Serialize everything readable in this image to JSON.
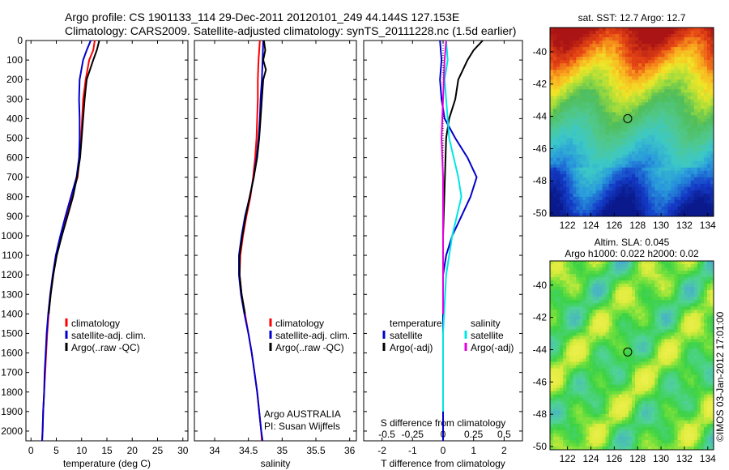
{
  "title_line1": "Argo profile: CS 1901133_114 29-Dec-2011 20120101_249 44.144S 127.153E",
  "title_line2": "Climatology: CARS2009. Satellite-adjusted climatology: synTS_20111228.nc (1.5d earlier)",
  "depth_ticks": [
    "0",
    "100",
    "200",
    "300",
    "400",
    "500",
    "600",
    "700",
    "800",
    "900",
    "1000",
    "1100",
    "1200",
    "1300",
    "1400",
    "1500",
    "1600",
    "1700",
    "1800",
    "1900",
    "2000"
  ],
  "colors": {
    "climatology": "#ff0000",
    "satellite": "#0000cc",
    "argo": "#000000",
    "sat_salinity": "#00e5e5",
    "argo_salinity": "#e000e0"
  },
  "chart_data": [
    {
      "type": "line",
      "id": "temperature",
      "xlabel": "temperature (deg C)",
      "xlim": [
        -1,
        31
      ],
      "xticks": [
        0,
        5,
        10,
        15,
        20,
        25,
        30
      ],
      "ylim": [
        0,
        2050
      ],
      "legend": [
        "climatology",
        "satellite-adj. clim.",
        "Argo(..raw -QC)"
      ],
      "series": [
        {
          "name": "climatology",
          "color": "#ff0000",
          "points": [
            [
              12.6,
              0
            ],
            [
              12.3,
              50
            ],
            [
              11.5,
              100
            ],
            [
              10.8,
              200
            ],
            [
              10.3,
              300
            ],
            [
              10.1,
              400
            ],
            [
              9.9,
              500
            ],
            [
              9.6,
              600
            ],
            [
              9.2,
              700
            ],
            [
              8.0,
              800
            ],
            [
              6.9,
              900
            ],
            [
              5.9,
              1000
            ],
            [
              5.0,
              1100
            ],
            [
              4.4,
              1200
            ],
            [
              3.9,
              1300
            ],
            [
              3.5,
              1400
            ],
            [
              3.2,
              1500
            ],
            [
              3.0,
              1600
            ],
            [
              2.8,
              1700
            ],
            [
              2.6,
              1800
            ],
            [
              2.4,
              1900
            ],
            [
              2.3,
              2000
            ],
            [
              2.2,
              2050
            ]
          ]
        },
        {
          "name": "satellite-adj. clim.",
          "color": "#0000cc",
          "points": [
            [
              11.8,
              0
            ],
            [
              11.0,
              50
            ],
            [
              10.3,
              100
            ],
            [
              9.6,
              200
            ],
            [
              9.5,
              300
            ],
            [
              9.6,
              400
            ],
            [
              9.6,
              500
            ],
            [
              9.5,
              600
            ],
            [
              9.0,
              700
            ],
            [
              7.9,
              800
            ],
            [
              6.8,
              900
            ],
            [
              5.8,
              1000
            ],
            [
              4.9,
              1100
            ],
            [
              4.3,
              1200
            ],
            [
              3.8,
              1300
            ],
            [
              3.4,
              1400
            ],
            [
              3.1,
              1500
            ],
            [
              2.9,
              1600
            ],
            [
              2.7,
              1700
            ],
            [
              2.6,
              1800
            ],
            [
              2.4,
              1900
            ],
            [
              2.3,
              2000
            ],
            [
              2.2,
              2050
            ]
          ]
        },
        {
          "name": "Argo(..raw -QC)",
          "color": "#000000",
          "points": [
            [
              13.5,
              0
            ],
            [
              13.0,
              50
            ],
            [
              12.3,
              100
            ],
            [
              11.0,
              200
            ],
            [
              10.6,
              300
            ],
            [
              10.3,
              400
            ],
            [
              10.0,
              500
            ],
            [
              9.7,
              600
            ],
            [
              9.1,
              700
            ],
            [
              8.3,
              800
            ],
            [
              7.2,
              900
            ],
            [
              6.1,
              1000
            ],
            [
              5.1,
              1100
            ],
            [
              4.4,
              1200
            ],
            [
              3.9,
              1300
            ],
            [
              3.5,
              1400
            ]
          ]
        }
      ]
    },
    {
      "type": "line",
      "id": "salinity",
      "xlabel": "salinity",
      "xlim": [
        33.7,
        36.1
      ],
      "xticks": [
        34,
        34.5,
        35,
        35.5,
        36
      ],
      "ylim": [
        0,
        2050
      ],
      "legend": [
        "climatology",
        "satellite-adj. clim.",
        "Argo(..raw -QC)"
      ],
      "annotation": [
        "Argo AUSTRALIA",
        "PI: Susan Wijffels"
      ],
      "series": [
        {
          "name": "climatology",
          "color": "#ff0000",
          "points": [
            [
              34.67,
              0
            ],
            [
              34.65,
              100
            ],
            [
              34.64,
              200
            ],
            [
              34.64,
              300
            ],
            [
              34.63,
              400
            ],
            [
              34.62,
              500
            ],
            [
              34.6,
              600
            ],
            [
              34.57,
              700
            ],
            [
              34.53,
              800
            ],
            [
              34.47,
              900
            ],
            [
              34.42,
              1000
            ],
            [
              34.38,
              1100
            ],
            [
              34.37,
              1200
            ],
            [
              34.4,
              1300
            ],
            [
              34.45,
              1400
            ],
            [
              34.5,
              1500
            ],
            [
              34.55,
              1600
            ],
            [
              34.59,
              1700
            ],
            [
              34.63,
              1800
            ],
            [
              34.66,
              1900
            ],
            [
              34.69,
              2000
            ],
            [
              34.7,
              2050
            ]
          ]
        },
        {
          "name": "satellite-adj. clim.",
          "color": "#0000cc",
          "points": [
            [
              34.72,
              0
            ],
            [
              34.71,
              100
            ],
            [
              34.7,
              200
            ],
            [
              34.68,
              300
            ],
            [
              34.67,
              400
            ],
            [
              34.65,
              500
            ],
            [
              34.62,
              600
            ],
            [
              34.58,
              700
            ],
            [
              34.52,
              800
            ],
            [
              34.45,
              900
            ],
            [
              34.4,
              1000
            ],
            [
              34.36,
              1100
            ],
            [
              34.36,
              1200
            ],
            [
              34.39,
              1300
            ],
            [
              34.44,
              1400
            ],
            [
              34.5,
              1500
            ],
            [
              34.55,
              1600
            ],
            [
              34.59,
              1700
            ],
            [
              34.63,
              1800
            ],
            [
              34.66,
              1900
            ],
            [
              34.69,
              2000
            ],
            [
              34.71,
              2050
            ]
          ]
        },
        {
          "name": "Argo(..raw -QC)",
          "color": "#000000",
          "points": [
            [
              34.73,
              0
            ],
            [
              34.75,
              50
            ],
            [
              34.72,
              100
            ],
            [
              34.76,
              150
            ],
            [
              34.72,
              200
            ],
            [
              34.7,
              300
            ],
            [
              34.68,
              400
            ],
            [
              34.66,
              500
            ],
            [
              34.63,
              600
            ],
            [
              34.58,
              700
            ],
            [
              34.52,
              800
            ],
            [
              34.46,
              900
            ],
            [
              34.41,
              1000
            ],
            [
              34.37,
              1100
            ],
            [
              34.37,
              1200
            ],
            [
              34.4,
              1300
            ],
            [
              34.45,
              1400
            ]
          ]
        }
      ]
    },
    {
      "type": "line",
      "id": "difference",
      "xlabel": "T difference from climatology",
      "xlabel_top": "S difference from climatology",
      "xlim": [
        -2.6,
        2.6
      ],
      "xticks": [
        -2,
        -1,
        0,
        1,
        2
      ],
      "top_ticks": [
        "-0.5",
        "-0.25",
        "0",
        "0.25",
        "0.5"
      ],
      "ylim": [
        0,
        2050
      ],
      "legend_left": [
        "temperature",
        "satellite",
        "Argo(-adj)"
      ],
      "legend_right": [
        "salinity",
        "satellite",
        "Argo(-adj)"
      ],
      "series": [
        {
          "name": "T satellite",
          "color": "#0000cc",
          "points": [
            [
              -0.1,
              0
            ],
            [
              -0.05,
              100
            ],
            [
              -0.1,
              200
            ],
            [
              -0.05,
              300
            ],
            [
              0.05,
              400
            ],
            [
              0.4,
              500
            ],
            [
              0.8,
              600
            ],
            [
              1.1,
              700
            ],
            [
              0.9,
              800
            ],
            [
              0.6,
              900
            ],
            [
              0.3,
              1000
            ],
            [
              0.1,
              1100
            ],
            [
              0,
              1200
            ],
            [
              0,
              1500
            ],
            [
              0,
              2050
            ]
          ]
        },
        {
          "name": "T Argo(-adj)",
          "color": "#000000",
          "points": [
            [
              1.3,
              0
            ],
            [
              1.0,
              50
            ],
            [
              0.8,
              100
            ],
            [
              0.5,
              200
            ],
            [
              0.4,
              300
            ],
            [
              0.2,
              400
            ],
            [
              0.1,
              500
            ],
            [
              0,
              1000
            ],
            [
              0,
              1400
            ]
          ]
        },
        {
          "name": "S satellite",
          "color": "#00e5e5",
          "points": [
            [
              0.1,
              0
            ],
            [
              0.15,
              100
            ],
            [
              0.05,
              200
            ],
            [
              0.1,
              300
            ],
            [
              0.2,
              500
            ],
            [
              0.5,
              700
            ],
            [
              0.6,
              800
            ],
            [
              0.3,
              1000
            ],
            [
              0.1,
              1200
            ],
            [
              0,
              1500
            ],
            [
              0,
              1900
            ]
          ]
        },
        {
          "name": "S Argo(-adj)",
          "color": "#e000e0",
          "points": [
            [
              0.1,
              0
            ],
            [
              0.05,
              100
            ],
            [
              0,
              300
            ],
            [
              -0.05,
              500
            ],
            [
              0,
              700
            ],
            [
              0,
              1000
            ],
            [
              0,
              1400
            ]
          ]
        }
      ]
    },
    {
      "type": "heatmap",
      "id": "sst-map",
      "title": "sat. SST: 12.7 Argo: 12.7",
      "xticks": [
        "122",
        "124",
        "126",
        "128",
        "130",
        "132",
        "134"
      ],
      "yticks": [
        "-40",
        "-42",
        "-44",
        "-46",
        "-48",
        "-50"
      ],
      "xlim": [
        120.5,
        134.5
      ],
      "ylim": [
        -50.2,
        -38.5
      ],
      "marker": [
        127.15,
        -44.14
      ]
    },
    {
      "type": "heatmap",
      "id": "sla-map",
      "title": [
        "Altim. SLA: 0.045",
        "Argo h1000: 0.022 h2000: 0.02"
      ],
      "xticks": [
        "122",
        "124",
        "126",
        "128",
        "130",
        "132",
        "134"
      ],
      "yticks": [
        "-40",
        "-42",
        "-44",
        "-46",
        "-48",
        "-50"
      ],
      "xlim": [
        120.5,
        134.5
      ],
      "ylim": [
        -50.2,
        -38.5
      ],
      "marker": [
        127.15,
        -44.14
      ]
    }
  ],
  "credit": "©IMOS 03-Jan-2012 17:01:00"
}
